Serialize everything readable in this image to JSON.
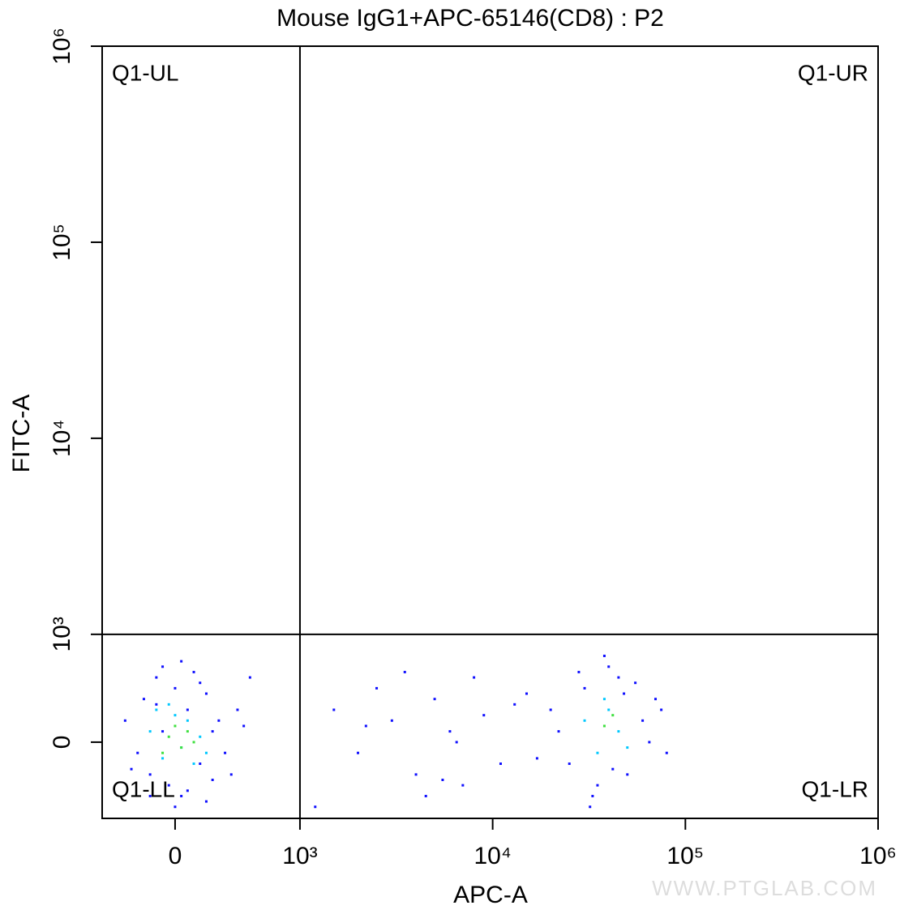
{
  "chart_data": {
    "type": "scatter",
    "title": "Mouse IgG1+APC-65146(CD8) : P2",
    "x_label": "APC-A",
    "y_label": "FITC-A",
    "scale": "biexponential",
    "xlim": [
      -584,
      1000000
    ],
    "ylim": [
      -707,
      1000000
    ],
    "xticks": [
      0,
      {
        "value": 1000,
        "label": "10³"
      },
      {
        "value": 10000,
        "label": "10⁴"
      },
      {
        "value": 100000,
        "label": "10⁵"
      },
      {
        "value": 1000000,
        "label": "10⁶"
      }
    ],
    "yticks": [
      0,
      {
        "value": 1000,
        "label": "10³"
      },
      {
        "value": 10000,
        "label": "10⁴"
      },
      {
        "value": 100000,
        "label": "10⁵"
      },
      {
        "value": 1000000,
        "label": "10⁶"
      }
    ],
    "gate": {
      "x": 1000,
      "y": 1000
    },
    "quadrants": {
      "UL": "Q1-UL",
      "UR": "Q1-UR",
      "LL": "Q1-LL",
      "LR": "Q1-LR"
    },
    "watermark": "WWW.PTGLAB.COM",
    "series": [
      {
        "color": "#1010ff",
        "x": [
          -400,
          -300,
          -250,
          -200,
          -150,
          -100,
          -50,
          0,
          50,
          100,
          150,
          200,
          250,
          300,
          350,
          400,
          500,
          600,
          -350,
          -200,
          -100,
          0,
          100,
          200,
          300,
          450,
          -150,
          50,
          250,
          550,
          1500,
          2000,
          2500,
          3000,
          4000,
          5000,
          6000,
          7000,
          8000,
          9000,
          11000,
          13000,
          1200,
          3500,
          4500,
          6500,
          15000,
          17000,
          2200,
          5500,
          20000,
          25000,
          30000,
          35000,
          40000,
          45000,
          50000,
          60000,
          70000,
          80000,
          22000,
          28000,
          33000,
          38000,
          42000,
          55000,
          65000,
          75000,
          32000,
          48000
        ],
        "y": [
          200,
          -100,
          400,
          -300,
          600,
          100,
          -400,
          500,
          -500,
          300,
          650,
          -200,
          450,
          -350,
          200,
          -100,
          300,
          600,
          -250,
          -500,
          700,
          -600,
          -450,
          550,
          100,
          -300,
          350,
          750,
          -550,
          150,
          300,
          -100,
          500,
          200,
          -300,
          400,
          100,
          -400,
          600,
          250,
          -200,
          350,
          -600,
          650,
          -500,
          0,
          450,
          -150,
          150,
          -350,
          300,
          -200,
          500,
          -400,
          700,
          600,
          -300,
          200,
          400,
          -100,
          100,
          650,
          -500,
          800,
          -250,
          550,
          0,
          300,
          -600,
          450
        ]
      },
      {
        "color": "#00c8ff",
        "x": [
          -200,
          -100,
          0,
          50,
          100,
          150,
          200,
          -50,
          250,
          -150,
          30000,
          35000,
          40000,
          45000,
          50000,
          38000
        ],
        "y": [
          100,
          -150,
          250,
          -50,
          200,
          -200,
          50,
          350,
          -100,
          300,
          200,
          -100,
          300,
          100,
          -50,
          400
        ]
      },
      {
        "color": "#40e040",
        "x": [
          -50,
          0,
          50,
          100,
          150,
          -100,
          38000,
          42000
        ],
        "y": [
          50,
          150,
          -50,
          100,
          0,
          -100,
          150,
          250
        ]
      }
    ]
  }
}
